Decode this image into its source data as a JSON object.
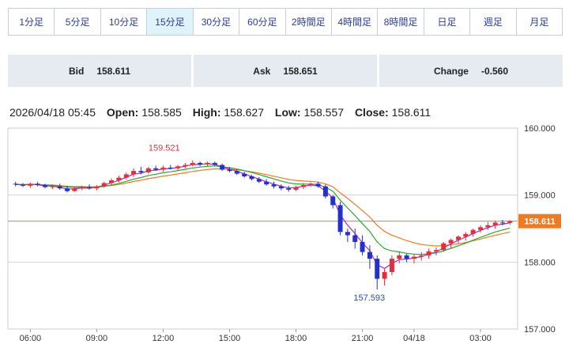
{
  "timeframes": {
    "items": [
      {
        "label": "1分足"
      },
      {
        "label": "5分足"
      },
      {
        "label": "10分足"
      },
      {
        "label": "15分足"
      },
      {
        "label": "30分足"
      },
      {
        "label": "60分足"
      },
      {
        "label": "2時間足"
      },
      {
        "label": "4時間足"
      },
      {
        "label": "8時間足"
      },
      {
        "label": "日足"
      },
      {
        "label": "週足"
      },
      {
        "label": "月足"
      }
    ],
    "active": "15分足"
  },
  "quote": {
    "bid_label": "Bid",
    "bid_value": "158.611",
    "ask_label": "Ask",
    "ask_value": "158.651",
    "change_label": "Change",
    "change_value": "-0.560"
  },
  "ohlc": {
    "datetime": "2026/04/18 05:45",
    "open_label": "Open:",
    "open": "158.585",
    "high_label": "High:",
    "high": "158.627",
    "low_label": "Low:",
    "low": "158.557",
    "close_label": "Close:",
    "close": "158.611"
  },
  "chart_data": {
    "type": "candlestick",
    "title": "",
    "xlabel": "",
    "ylabel": "",
    "ylim": [
      157.0,
      160.0
    ],
    "y_ticks": [
      "160.000",
      "159.000",
      "158.000",
      "157.000"
    ],
    "x_ticks": [
      "06:00",
      "09:00",
      "12:00",
      "15:00",
      "18:00",
      "21:00",
      "04/18",
      "03:00"
    ],
    "current_price_label": "158.611",
    "annotations": [
      {
        "text": "159.521",
        "kind": "high"
      },
      {
        "text": "157.593",
        "kind": "low"
      }
    ],
    "colors": {
      "up": "#e0303a",
      "down": "#2530c8",
      "ma_short": "#b028c8",
      "ma_mid": "#2aa830",
      "ma_long": "#f07a20",
      "price_line": "#f07a20",
      "price_tag": "#f07a20",
      "high_annotation": "#e0303a",
      "low_annotation": "#2a4fa8"
    },
    "candles": [
      [
        159.17,
        159.2,
        159.13,
        159.16
      ],
      [
        159.16,
        159.18,
        159.12,
        159.14
      ],
      [
        159.14,
        159.19,
        159.11,
        159.17
      ],
      [
        159.17,
        159.2,
        159.13,
        159.15
      ],
      [
        159.15,
        159.17,
        159.1,
        159.12
      ],
      [
        159.12,
        159.16,
        159.09,
        159.13
      ],
      [
        159.13,
        159.17,
        159.08,
        159.1
      ],
      [
        159.1,
        159.14,
        159.04,
        159.06
      ],
      [
        159.06,
        159.12,
        159.05,
        159.1
      ],
      [
        159.1,
        159.14,
        159.07,
        159.12
      ],
      [
        159.12,
        159.16,
        159.08,
        159.1
      ],
      [
        159.1,
        159.15,
        159.07,
        159.13
      ],
      [
        159.13,
        159.2,
        159.11,
        159.18
      ],
      [
        159.18,
        159.25,
        159.15,
        159.22
      ],
      [
        159.22,
        159.29,
        159.19,
        159.26
      ],
      [
        159.26,
        159.34,
        159.23,
        159.31
      ],
      [
        159.31,
        159.4,
        159.27,
        159.36
      ],
      [
        159.36,
        159.42,
        159.31,
        159.34
      ],
      [
        159.34,
        159.42,
        159.32,
        159.4
      ],
      [
        159.4,
        159.44,
        159.36,
        159.38
      ],
      [
        159.38,
        159.44,
        159.35,
        159.41
      ],
      [
        159.41,
        159.45,
        159.38,
        159.4
      ],
      [
        159.4,
        159.45,
        159.37,
        159.43
      ],
      [
        159.43,
        159.48,
        159.4,
        159.45
      ],
      [
        159.45,
        159.52,
        159.43,
        159.48
      ],
      [
        159.48,
        159.5,
        159.43,
        159.46
      ],
      [
        159.46,
        159.5,
        159.44,
        159.48
      ],
      [
        159.48,
        159.5,
        159.44,
        159.45
      ],
      [
        159.45,
        159.47,
        159.36,
        159.38
      ],
      [
        159.38,
        159.42,
        159.34,
        159.36
      ],
      [
        159.36,
        159.38,
        159.3,
        159.32
      ],
      [
        159.32,
        159.35,
        159.26,
        159.28
      ],
      [
        159.28,
        159.3,
        159.22,
        159.24
      ],
      [
        159.24,
        159.27,
        159.18,
        159.2
      ],
      [
        159.2,
        159.24,
        159.14,
        159.16
      ],
      [
        159.16,
        159.2,
        159.1,
        159.13
      ],
      [
        159.13,
        159.16,
        159.07,
        159.1
      ],
      [
        159.1,
        159.14,
        159.05,
        159.08
      ],
      [
        159.08,
        159.14,
        159.06,
        159.12
      ],
      [
        159.12,
        159.18,
        159.09,
        159.15
      ],
      [
        159.15,
        159.19,
        159.12,
        159.17
      ],
      [
        159.17,
        159.2,
        159.11,
        159.13
      ],
      [
        159.13,
        159.16,
        158.95,
        158.98
      ],
      [
        158.98,
        159.0,
        158.8,
        158.85
      ],
      [
        158.85,
        158.9,
        158.4,
        158.45
      ],
      [
        158.45,
        158.5,
        158.3,
        158.4
      ],
      [
        158.4,
        158.5,
        158.2,
        158.3
      ],
      [
        158.3,
        158.4,
        158.1,
        158.15
      ],
      [
        158.15,
        158.25,
        157.9,
        158.05
      ],
      [
        158.05,
        158.1,
        157.59,
        157.75
      ],
      [
        157.75,
        157.9,
        157.65,
        157.85
      ],
      [
        157.85,
        158.1,
        157.8,
        158.05
      ],
      [
        158.05,
        158.15,
        157.98,
        158.1
      ],
      [
        158.1,
        158.12,
        158.0,
        158.05
      ],
      [
        158.05,
        158.12,
        157.98,
        158.08
      ],
      [
        158.08,
        158.15,
        158.02,
        158.1
      ],
      [
        158.1,
        158.2,
        158.05,
        158.16
      ],
      [
        158.16,
        158.22,
        158.1,
        158.18
      ],
      [
        158.18,
        158.3,
        158.15,
        158.28
      ],
      [
        158.28,
        158.35,
        158.2,
        158.33
      ],
      [
        158.33,
        158.4,
        158.28,
        158.38
      ],
      [
        158.38,
        158.45,
        158.32,
        158.42
      ],
      [
        158.42,
        158.5,
        158.38,
        158.48
      ],
      [
        158.48,
        158.55,
        158.44,
        158.52
      ],
      [
        158.52,
        158.6,
        158.48,
        158.55
      ],
      [
        158.55,
        158.62,
        158.5,
        158.59
      ],
      [
        158.59,
        158.63,
        158.55,
        158.58
      ],
      [
        158.585,
        158.627,
        158.557,
        158.611
      ]
    ]
  }
}
